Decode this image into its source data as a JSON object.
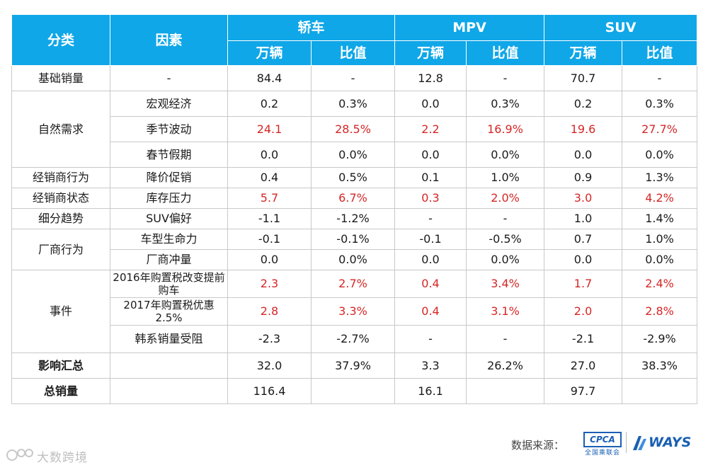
{
  "header": {
    "category": "分类",
    "factor": "因素",
    "groups": [
      "轿车",
      "MPV",
      "SUV"
    ],
    "sub": {
      "units": "万辆",
      "ratio": "比值"
    }
  },
  "rows": {
    "base": {
      "category": "基础销量",
      "factor": "-",
      "v": [
        "84.4",
        "-",
        "12.8",
        "-",
        "70.7",
        "-"
      ]
    },
    "macro": {
      "category": "自然需求",
      "factor": "宏观经济",
      "v": [
        "0.2",
        "0.3%",
        "0.0",
        "0.3%",
        "0.2",
        "0.3%"
      ]
    },
    "season": {
      "factor": "季节波动",
      "v": [
        "24.1",
        "28.5%",
        "2.2",
        "16.9%",
        "19.6",
        "27.7%"
      ]
    },
    "holiday": {
      "factor": "春节假期",
      "v": [
        "0.0",
        "0.0%",
        "0.0",
        "0.0%",
        "0.0",
        "0.0%"
      ]
    },
    "discount": {
      "category": "经销商行为",
      "factor": "降价促销",
      "v": [
        "0.4",
        "0.5%",
        "0.1",
        "1.0%",
        "0.9",
        "1.3%"
      ]
    },
    "inventory": {
      "category": "经销商状态",
      "factor": "库存压力",
      "v": [
        "5.7",
        "6.7%",
        "0.3",
        "2.0%",
        "3.0",
        "4.2%"
      ]
    },
    "suvpref": {
      "category": "细分趋势",
      "factor": "SUV偏好",
      "v": [
        "-1.1",
        "-1.2%",
        "-",
        "-",
        "1.0",
        "1.4%"
      ]
    },
    "lifecycle": {
      "category": "厂商行为",
      "factor": "车型生命力",
      "v": [
        "-0.1",
        "-0.1%",
        "-0.1",
        "-0.5%",
        "0.7",
        "1.0%"
      ]
    },
    "push": {
      "factor": "厂商冲量",
      "v": [
        "0.0",
        "0.0%",
        "0.0",
        "0.0%",
        "0.0",
        "0.0%"
      ]
    },
    "tax2016": {
      "category": "事件",
      "factor": "2016年购置税改变提前购车",
      "v": [
        "2.3",
        "2.7%",
        "0.4",
        "3.4%",
        "1.7",
        "2.4%"
      ]
    },
    "tax2017": {
      "factor": "2017年购置税优惠2.5%",
      "v": [
        "2.8",
        "3.3%",
        "0.4",
        "3.1%",
        "2.0",
        "2.8%"
      ]
    },
    "korea": {
      "factor": "韩系销量受阻",
      "v": [
        "-2.3",
        "-2.7%",
        "-",
        "-",
        "-2.1",
        "-2.9%"
      ]
    },
    "impact": {
      "category": "影响汇总",
      "v": [
        "32.0",
        "37.9%",
        "3.3",
        "26.2%",
        "27.0",
        "38.3%"
      ]
    },
    "total": {
      "category": "总销量",
      "v": [
        "116.4",
        "16.1",
        "97.7"
      ]
    }
  },
  "footer": {
    "source_label": "数据来源：",
    "cpca_logo": "CPCA",
    "cpca_sub": "全国乘联会",
    "ways_logo": "WAYS",
    "watermark": "大数跨境"
  },
  "colors": {
    "header_bg": "#0fa7e8",
    "highlight": "#d62626",
    "border": "#c9c9c9",
    "brand_blue": "#1a5fb4"
  }
}
